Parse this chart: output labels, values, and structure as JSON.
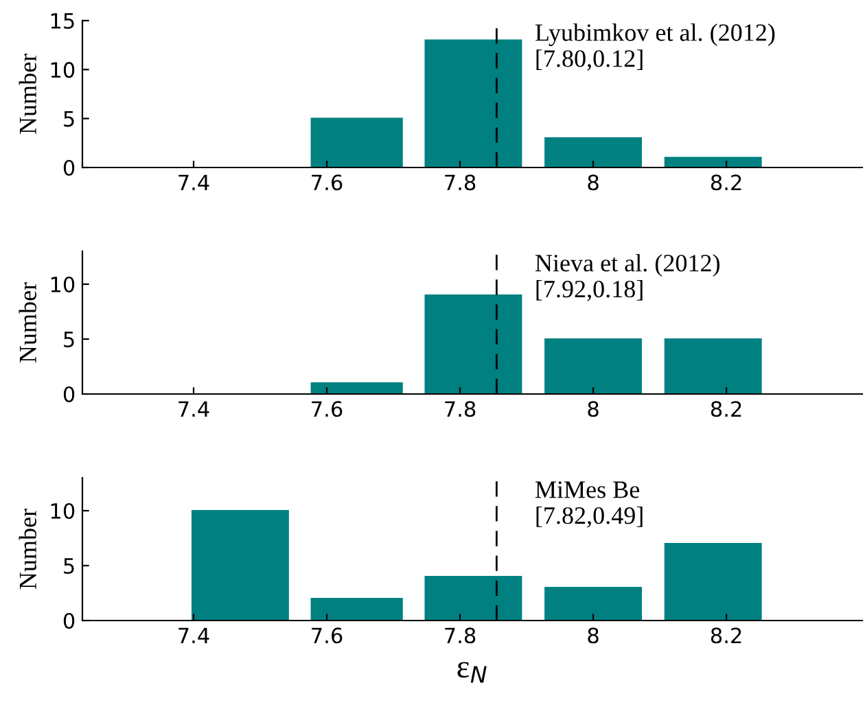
{
  "chart_data": [
    {
      "type": "histogram",
      "bins": [
        7.38,
        7.56,
        7.73,
        7.91,
        8.09,
        8.27
      ],
      "values": [
        0,
        5,
        13,
        3,
        1
      ],
      "color": "#008080",
      "xlim": [
        7.233,
        8.404
      ],
      "xticks": [
        7.4,
        7.6,
        7.8,
        8,
        8.2
      ],
      "ylim": [
        0,
        15
      ],
      "yticks": [
        0,
        5,
        10,
        15
      ],
      "ylabel": "Number",
      "annotations": [
        "Lyubimkov et al. (2012)\n[7.80,0.12]"
      ],
      "ref_lines": [
        {
          "axis": "x",
          "value": 7.855,
          "color": "#000000",
          "line_style": "dashed"
        }
      ],
      "grid": false
    },
    {
      "type": "histogram",
      "bins": [
        7.38,
        7.56,
        7.73,
        7.91,
        8.09,
        8.27
      ],
      "values": [
        0,
        1,
        9,
        5,
        5
      ],
      "color": "#008080",
      "xlim": [
        7.233,
        8.404
      ],
      "xticks": [
        7.4,
        7.6,
        7.8,
        8,
        8.2
      ],
      "ylim": [
        0,
        13
      ],
      "yticks": [
        0,
        5,
        10
      ],
      "ylabel": "Number",
      "annotations": [
        "Nieva et al. (2012)\n[7.92,0.18]"
      ],
      "ref_lines": [
        {
          "axis": "x",
          "value": 7.855,
          "color": "#000000",
          "line_style": "dashed"
        }
      ],
      "grid": false
    },
    {
      "type": "histogram",
      "bins": [
        7.38,
        7.56,
        7.73,
        7.91,
        8.09,
        8.27
      ],
      "values": [
        10,
        2,
        4,
        3,
        7
      ],
      "color": "#008080",
      "xlim": [
        7.233,
        8.404
      ],
      "xticks": [
        7.4,
        7.6,
        7.8,
        8,
        8.2
      ],
      "ylim": [
        0,
        13
      ],
      "yticks": [
        0,
        5,
        10
      ],
      "ylabel": "Number",
      "xlabel": "ε$_{N}$",
      "annotations": [
        "MiMes Be\n[7.82,0.49]"
      ],
      "ref_lines": [
        {
          "axis": "x",
          "value": 7.855,
          "color": "#000000",
          "line_style": "dashed"
        }
      ],
      "grid": false
    }
  ]
}
